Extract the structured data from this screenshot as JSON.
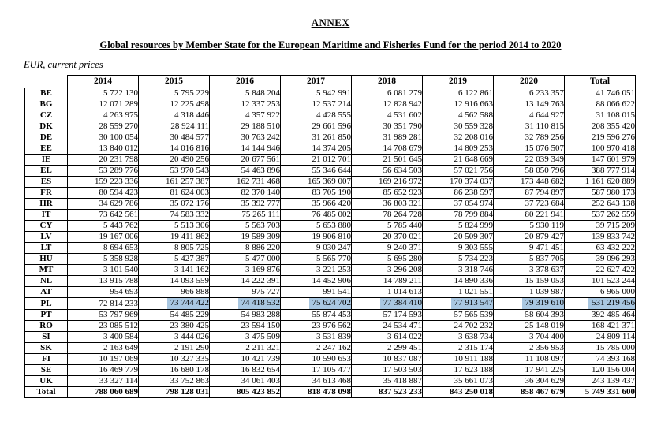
{
  "doc": {
    "annex": "ANNEX",
    "title": "Global resources by Member State for the European Maritime and Fisheries Fund for the period 2014 to 2020",
    "subtitle": "EUR, current prices"
  },
  "table": {
    "columns": [
      "",
      "2014",
      "2015",
      "2016",
      "2017",
      "2018",
      "2019",
      "2020",
      "Total"
    ],
    "rows": [
      {
        "label": "BE",
        "values": [
          "5 722 130",
          "5 795 229",
          "5 848 204",
          "5 942 991",
          "6 081 279",
          "6 122 861",
          "6 233 357",
          "41 746 051"
        ]
      },
      {
        "label": "BG",
        "values": [
          "12 071 289",
          "12 225 498",
          "12 337 253",
          "12 537 214",
          "12 828 942",
          "12 916 663",
          "13 149 763",
          "88 066 622"
        ]
      },
      {
        "label": "CZ",
        "values": [
          "4 263 975",
          "4 318 446",
          "4 357 922",
          "4 428 555",
          "4 531 602",
          "4 562 588",
          "4 644 927",
          "31 108 015"
        ]
      },
      {
        "label": "DK",
        "values": [
          "28 559 270",
          "28 924 111",
          "29 188 510",
          "29 661 596",
          "30 351 790",
          "30 559 328",
          "31 110 815",
          "208 355 420"
        ]
      },
      {
        "label": "DE",
        "values": [
          "30 100 054",
          "30 484 577",
          "30 763 242",
          "31 261 850",
          "31 989 281",
          "32 208 016",
          "32 789 256",
          "219 596 276"
        ]
      },
      {
        "label": "EE",
        "values": [
          "13 840 012",
          "14 016 816",
          "14 144 946",
          "14 374 205",
          "14 708 679",
          "14 809 253",
          "15 076 507",
          "100 970 418"
        ]
      },
      {
        "label": "IE",
        "values": [
          "20 231 798",
          "20 490 256",
          "20 677 561",
          "21 012 701",
          "21 501 645",
          "21 648 669",
          "22 039 349",
          "147 601 979"
        ]
      },
      {
        "label": "EL",
        "values": [
          "53 289 776",
          "53 970 543",
          "54 463 896",
          "55 346 644",
          "56 634 503",
          "57 021 756",
          "58 050 796",
          "388 777 914"
        ]
      },
      {
        "label": "ES",
        "values": [
          "159 223 336",
          "161 257 387",
          "162 731 468",
          "165 369 007",
          "169 216 972",
          "170 374 037",
          "173 448 682",
          "1 161 620 889"
        ]
      },
      {
        "label": "FR",
        "values": [
          "80 594 423",
          "81 624 003",
          "82 370 140",
          "83 705 190",
          "85 652 923",
          "86 238 597",
          "87 794 897",
          "587 980 173"
        ]
      },
      {
        "label": "HR",
        "values": [
          "34 629 786",
          "35 072 176",
          "35 392 777",
          "35 966 420",
          "36 803 321",
          "37 054 974",
          "37 723 684",
          "252 643 138"
        ]
      },
      {
        "label": "IT",
        "values": [
          "73 642 561",
          "74 583 332",
          "75 265 111",
          "76 485 002",
          "78 264 728",
          "78 799 884",
          "80 221 941",
          "537 262 559"
        ]
      },
      {
        "label": "CY",
        "values": [
          "5 443 762",
          "5 513 306",
          "5 563 703",
          "5 653 880",
          "5 785 440",
          "5 824 999",
          "5 930 119",
          "39 715 209"
        ]
      },
      {
        "label": "LV",
        "values": [
          "19 167 006",
          "19 411 862",
          "19 589 309",
          "19 906 810",
          "20 370 021",
          "20 509 307",
          "20 879 427",
          "139 833 742"
        ]
      },
      {
        "label": "LT",
        "values": [
          "8 694 653",
          "8 805 725",
          "8 886 220",
          "9 030 247",
          "9 240 371",
          "9 303 555",
          "9 471 451",
          "63 432 222"
        ]
      },
      {
        "label": "HU",
        "values": [
          "5 358 928",
          "5 427 387",
          "5 477 000",
          "5 565 770",
          "5 695 280",
          "5 734 223",
          "5 837 705",
          "39 096 293"
        ]
      },
      {
        "label": "MT",
        "values": [
          "3 101 540",
          "3 141 162",
          "3 169 876",
          "3 221 253",
          "3 296 208",
          "3 318 746",
          "3 378 637",
          "22 627 422"
        ]
      },
      {
        "label": "NL",
        "values": [
          "13 915 788",
          "14 093 559",
          "14 222 391",
          "14 452 906",
          "14 789 211",
          "14 890 336",
          "15 159 053",
          "101 523 244"
        ]
      },
      {
        "label": "AT",
        "values": [
          "954 693",
          "966 888",
          "975 727",
          "991 541",
          "1 014 613",
          "1 021 551",
          "1 039 987",
          "6 965 000"
        ]
      },
      {
        "label": "PL",
        "values": [
          "72 814 233",
          "73 744 422",
          "74 418 532",
          "75 624 702",
          "77 384 410",
          "77 913 547",
          "79 319 610",
          "531 219 456"
        ]
      },
      {
        "label": "PT",
        "values": [
          "53 797 969",
          "54 485 229",
          "54 983 288",
          "55 874 453",
          "57 174 593",
          "57 565 539",
          "58 604 393",
          "392 485 464"
        ]
      },
      {
        "label": "RO",
        "values": [
          "23 085 512",
          "23 380 425",
          "23 594 150",
          "23 976 562",
          "24 534 471",
          "24 702 232",
          "25 148 019",
          "168 421 371"
        ]
      },
      {
        "label": "SI",
        "values": [
          "3 400 584",
          "3 444 026",
          "3 475 509",
          "3 531 839",
          "3 614 022",
          "3 638 734",
          "3 704 400",
          "24 809 114"
        ]
      },
      {
        "label": "SK",
        "values": [
          "2 163 649",
          "2 191 290",
          "2 211 321",
          "2 247 162",
          "2 299 451",
          "2 315 174",
          "2 356 953",
          "15 785 000"
        ]
      },
      {
        "label": "FI",
        "values": [
          "10 197 069",
          "10 327 335",
          "10 421 739",
          "10 590 653",
          "10 837 087",
          "10 911 188",
          "11 108 097",
          "74 393 168"
        ]
      },
      {
        "label": "SE",
        "values": [
          "16 469 779",
          "16 680 178",
          "16 832 654",
          "17 105 477",
          "17 503 503",
          "17 623 188",
          "17 941 225",
          "120 156 004"
        ]
      },
      {
        "label": "UK",
        "values": [
          "33 327 114",
          "33 752 863",
          "34 061 403",
          "34 613 468",
          "35 418 887",
          "35 661 073",
          "36 304 629",
          "243 139 437"
        ]
      },
      {
        "label": "Total",
        "values": [
          "788 060 689",
          "798 128 031",
          "805 423 852",
          "818 478 098",
          "837 523 233",
          "843 250 018",
          "858 467 679",
          "5 749 331 600"
        ]
      }
    ],
    "total_row_label": "Total",
    "highlight": {
      "row_label": "PL",
      "value_indices": [
        1,
        2,
        3,
        4,
        5,
        6,
        7
      ],
      "color": "#a9c7e1"
    }
  }
}
